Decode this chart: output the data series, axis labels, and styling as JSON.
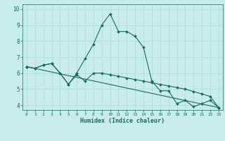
{
  "xlabel": "Humidex (Indice chaleur)",
  "background_color": "#c8ecec",
  "grid_color": "#a8d8d8",
  "line_color": "#1a6b5a",
  "ylim": [
    3.7,
    10.3
  ],
  "xlim": [
    -0.5,
    23.5
  ],
  "yticks": [
    4,
    5,
    6,
    7,
    8,
    9,
    10
  ],
  "xticks": [
    0,
    1,
    2,
    3,
    4,
    5,
    6,
    7,
    8,
    9,
    10,
    11,
    12,
    13,
    14,
    15,
    16,
    17,
    18,
    19,
    20,
    21,
    22,
    23
  ],
  "line1_x": [
    0,
    1,
    2,
    3,
    4,
    5,
    6,
    7,
    8,
    9,
    10,
    11,
    12,
    13,
    14,
    15,
    16,
    17,
    18,
    19,
    20,
    21,
    22,
    23
  ],
  "line1_y": [
    6.4,
    6.3,
    6.5,
    6.6,
    6.0,
    5.3,
    6.0,
    6.9,
    7.8,
    9.0,
    9.7,
    8.6,
    8.6,
    8.3,
    7.6,
    5.5,
    4.9,
    4.9,
    4.1,
    4.3,
    3.9,
    4.1,
    4.3,
    3.85
  ],
  "line2_x": [
    0,
    1,
    2,
    3,
    4,
    5,
    6,
    7,
    8,
    9,
    10,
    11,
    12,
    13,
    14,
    15,
    16,
    17,
    18,
    19,
    20,
    21,
    22,
    23
  ],
  "line2_y": [
    6.4,
    6.3,
    6.5,
    6.6,
    6.0,
    5.3,
    5.9,
    5.5,
    6.0,
    6.0,
    5.9,
    5.8,
    5.7,
    5.6,
    5.5,
    5.4,
    5.3,
    5.2,
    5.1,
    5.0,
    4.85,
    4.7,
    4.55,
    3.85
  ],
  "line3_x": [
    0,
    23
  ],
  "line3_y": [
    6.4,
    3.85
  ]
}
